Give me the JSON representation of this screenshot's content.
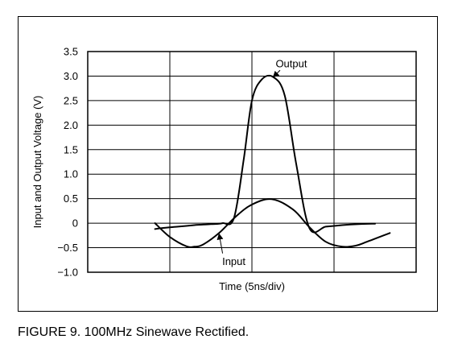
{
  "figure": {
    "caption": "FIGURE 9. 100MHz Sinewave Rectified."
  },
  "chart_data": {
    "type": "line",
    "xlabel": "Time (5ns/div)",
    "ylabel": "Input and Output Voltage (V)",
    "ylim": [
      -1.0,
      3.5
    ],
    "yticks": [
      "3.5",
      "3.0",
      "2.5",
      "2.0",
      "1.5",
      "1.0",
      "0.5",
      "0",
      "−0.5",
      "−1.0"
    ],
    "ytick_values": [
      3.5,
      3.0,
      2.5,
      2.0,
      1.5,
      1.0,
      0.5,
      0,
      -0.5,
      -1.0
    ],
    "xlim": [
      0,
      20
    ],
    "x_divisions": 4,
    "grid": true,
    "series": [
      {
        "name": "Output",
        "x": [
          4.1,
          4.5,
          5.5,
          6.5,
          7.5,
          8.2,
          8.9,
          9.5,
          10.0,
          10.6,
          11.3,
          12.0,
          12.7,
          13.5,
          14.5,
          15.5,
          16.5,
          17.5
        ],
        "values": [
          -0.12,
          -0.1,
          -0.07,
          -0.04,
          -0.02,
          0.0,
          0.1,
          1.3,
          2.5,
          2.93,
          2.98,
          2.6,
          1.2,
          -0.1,
          -0.07,
          -0.04,
          -0.02,
          -0.01
        ]
      },
      {
        "name": "Input",
        "x": [
          4.1,
          5.0,
          6.0,
          6.5,
          7.0,
          8.0,
          9.0,
          10.0,
          11.2,
          12.5,
          13.5,
          14.5,
          15.5,
          16.3,
          17.0,
          18.4
        ],
        "values": [
          0.0,
          -0.28,
          -0.47,
          -0.48,
          -0.44,
          -0.2,
          0.13,
          0.38,
          0.49,
          0.28,
          -0.08,
          -0.38,
          -0.48,
          -0.46,
          -0.38,
          -0.2
        ]
      }
    ],
    "annotations": [
      {
        "text": "Output",
        "at": [
          12.4,
          3.25
        ],
        "arrow_to": [
          11.3,
          2.98
        ]
      },
      {
        "text": "Input",
        "at": [
          8.9,
          -0.78
        ],
        "arrow_to": [
          8.0,
          -0.22
        ]
      }
    ]
  }
}
